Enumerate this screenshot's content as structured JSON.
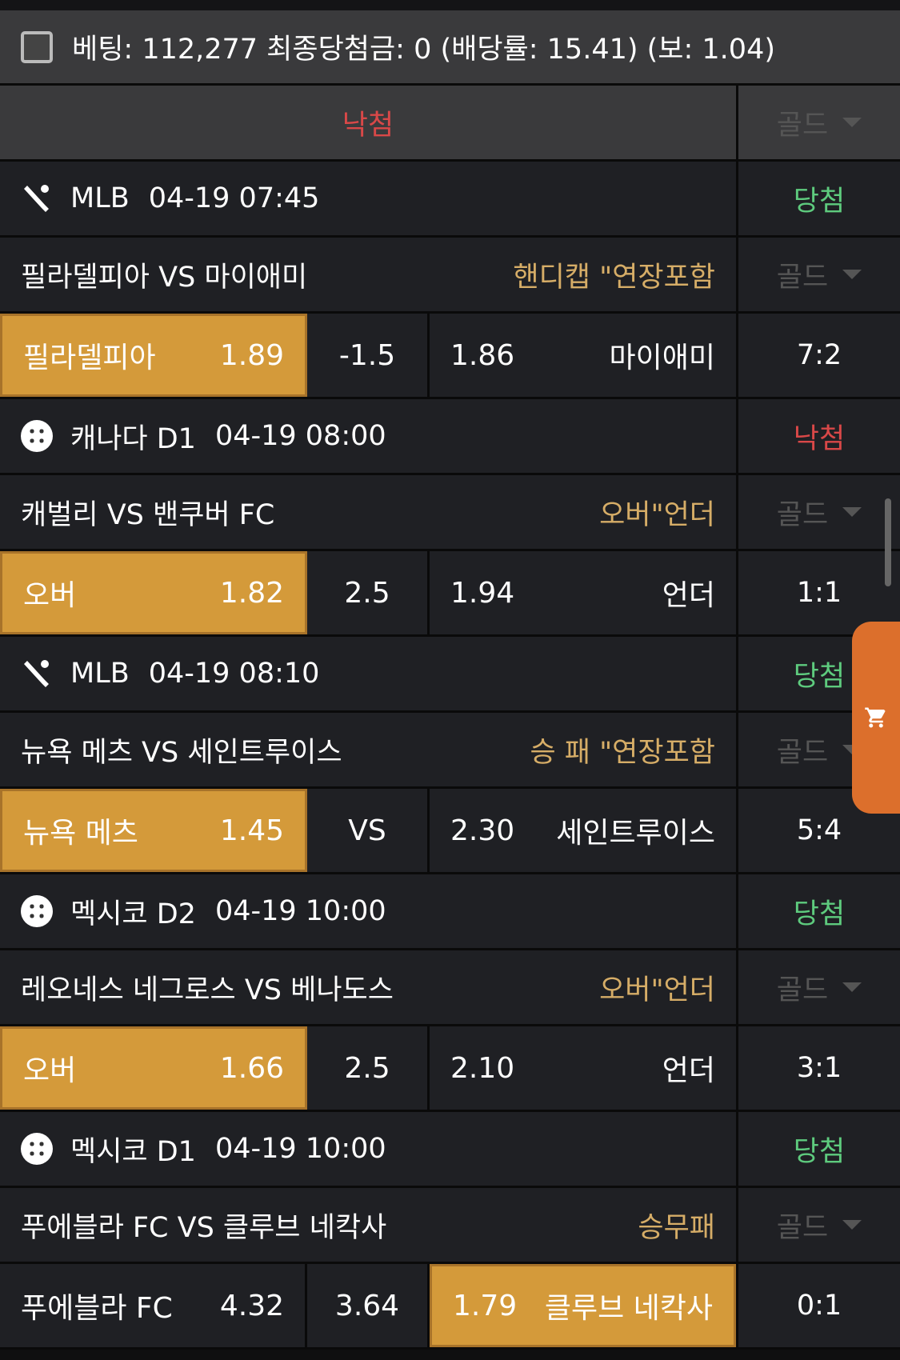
{
  "summary": {
    "text": "베팅: 112,277 최종당첨금: 0 (배당률: 15.41) (보: 1.04)"
  },
  "overall": {
    "result": "낙첨",
    "select": "골드"
  },
  "colors": {
    "win": "#5ecb7e",
    "lose": "#d94848",
    "selected": "#d49a3a",
    "market": "#d6ad67",
    "cart": "#dc6f2c"
  },
  "games": [
    {
      "icon": "baseball-icon",
      "league": "MLB",
      "time": "04-19 07:45",
      "result": "당첨",
      "result_type": "win",
      "match": "필라델피아 VS 마이애미",
      "market": "핸디캡 \"연장포함",
      "select": "골드",
      "home": "필라델피아",
      "home_odds": "1.89",
      "mid": "-1.5",
      "away_odds": "1.86",
      "away": "마이애미",
      "selected": "home",
      "score": "7:2"
    },
    {
      "icon": "soccer-ball-icon",
      "league": "캐나다 D1",
      "time": "04-19 08:00",
      "result": "낙첨",
      "result_type": "lose",
      "match": "캐벌리 VS 밴쿠버 FC",
      "market": "오버\"언더",
      "select": "골드",
      "home": "오버",
      "home_odds": "1.82",
      "mid": "2.5",
      "away_odds": "1.94",
      "away": "언더",
      "selected": "home",
      "score": "1:1"
    },
    {
      "icon": "baseball-icon",
      "league": "MLB",
      "time": "04-19 08:10",
      "result": "당첨",
      "result_type": "win",
      "match": "뉴욕 메츠 VS 세인트루이스",
      "market": "승 패 \"연장포함",
      "select": "골드",
      "home": "뉴욕 메츠",
      "home_odds": "1.45",
      "mid": "VS",
      "away_odds": "2.30",
      "away": "세인트루이스",
      "selected": "home",
      "score": "5:4"
    },
    {
      "icon": "soccer-ball-icon",
      "league": "멕시코 D2",
      "time": "04-19 10:00",
      "result": "당첨",
      "result_type": "win",
      "match": "레오네스 네그로스 VS 베나도스",
      "market": "오버\"언더",
      "select": "골드",
      "home": "오버",
      "home_odds": "1.66",
      "mid": "2.5",
      "away_odds": "2.10",
      "away": "언더",
      "selected": "home",
      "score": "3:1"
    },
    {
      "icon": "soccer-ball-icon",
      "league": "멕시코 D1",
      "time": "04-19 10:00",
      "result": "당첨",
      "result_type": "win",
      "match": "푸에블라 FC VS 클루브 네칵사",
      "market": "승무패",
      "select": "골드",
      "home": "푸에블라 FC",
      "home_odds": "4.32",
      "mid": "3.64",
      "away_odds": "1.79",
      "away": "클루브 네칵사",
      "selected": "away",
      "score": "0:1"
    }
  ]
}
